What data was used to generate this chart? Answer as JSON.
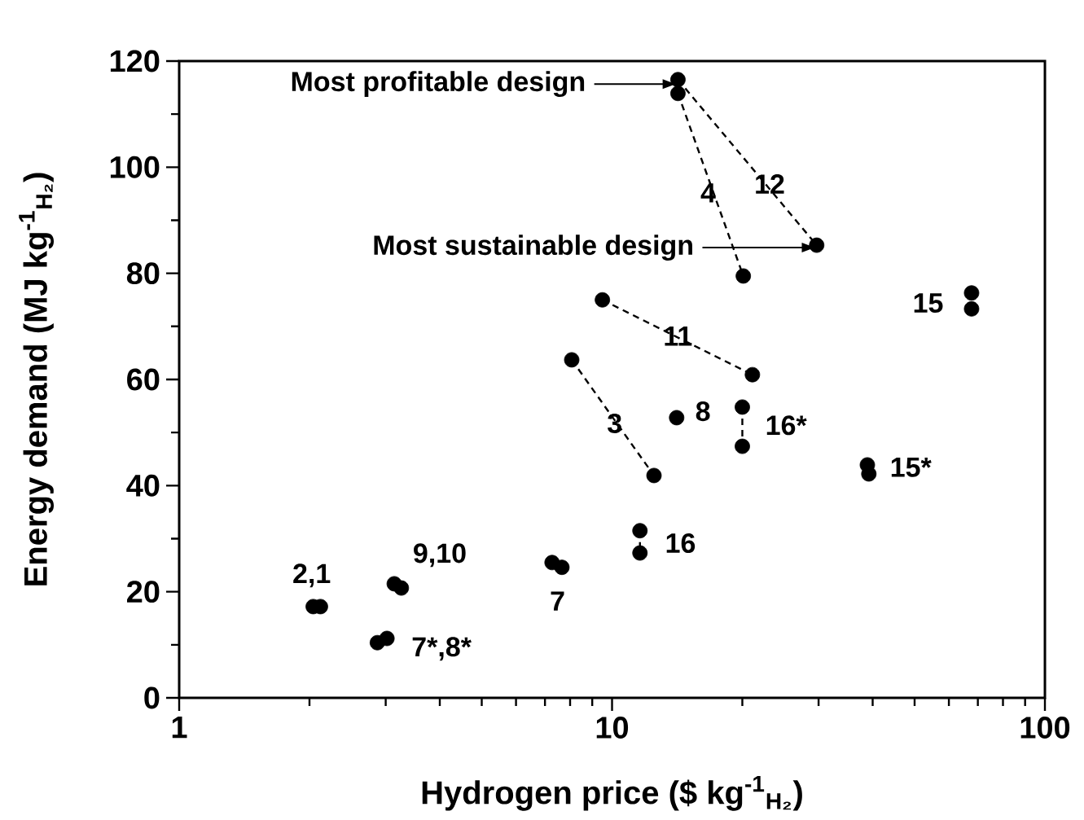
{
  "chart_data": {
    "type": "scatter",
    "xlabel": "Hydrogen price ($ kg$^{-1}$$_{H₂}$)",
    "ylabel": "Energy demand (MJ kg$^{-1}$$_{H₂}$)",
    "log": "x",
    "xlim": [
      1,
      100
    ],
    "xticks": [
      1,
      10,
      100
    ],
    "ylim": [
      0,
      120
    ],
    "yticks": [
      0,
      20,
      40,
      60,
      80,
      100,
      120
    ],
    "series": [
      {
        "type": "line",
        "line_style": "dashed",
        "marker": "none",
        "color": "#000000",
        "x": [
          14.2,
          20.1
        ],
        "values": [
          113.9,
          79.5
        ]
      },
      {
        "type": "line",
        "line_style": "dashed",
        "marker": "none",
        "color": "#000000",
        "x": [
          14.2,
          29.7
        ],
        "values": [
          116.5,
          85.3
        ]
      },
      {
        "type": "line",
        "line_style": "dashed",
        "marker": "none",
        "color": "#000000",
        "x": [
          9.5,
          21.1
        ],
        "values": [
          75.0,
          60.9
        ]
      },
      {
        "type": "line",
        "line_style": "dashed",
        "marker": "none",
        "color": "#000000",
        "x": [
          8.07,
          12.5
        ],
        "values": [
          63.7,
          41.9
        ]
      },
      {
        "type": "line",
        "line_style": "dashed",
        "marker": "none",
        "color": "#000000",
        "x": [
          20.0,
          20.0
        ],
        "values": [
          54.8,
          47.4
        ]
      },
      {
        "type": "line",
        "line_style": "dashed",
        "marker": "none",
        "color": "#000000",
        "x": [
          11.6,
          11.6
        ],
        "values": [
          31.5,
          27.3
        ]
      },
      {
        "marker": "circle",
        "color": "#000000",
        "x": [
          14.2,
          14.2,
          29.7,
          20.1,
          9.5,
          21.1,
          8.07,
          12.5,
          14.1,
          20.0,
          20.0,
          38.9,
          39.2,
          67.7,
          67.7,
          11.6,
          11.6,
          7.27,
          7.66,
          3.14,
          3.26,
          2.04,
          2.12,
          2.87,
          3.02
        ],
        "values": [
          116.5,
          113.9,
          85.3,
          79.5,
          75.0,
          60.9,
          63.7,
          41.9,
          52.8,
          54.8,
          47.4,
          43.9,
          42.2,
          76.3,
          73.3,
          31.5,
          27.3,
          25.5,
          24.6,
          21.5,
          20.7,
          17.2,
          17.2,
          10.4,
          11.2
        ]
      }
    ],
    "annotations": [
      "Most profitable design",
      "Most sustainable design",
      "4",
      "12",
      "11",
      "3",
      "8",
      "16*",
      "15*",
      "15",
      "16",
      "7",
      "9,10",
      "2,1",
      "7*,8*"
    ]
  }
}
